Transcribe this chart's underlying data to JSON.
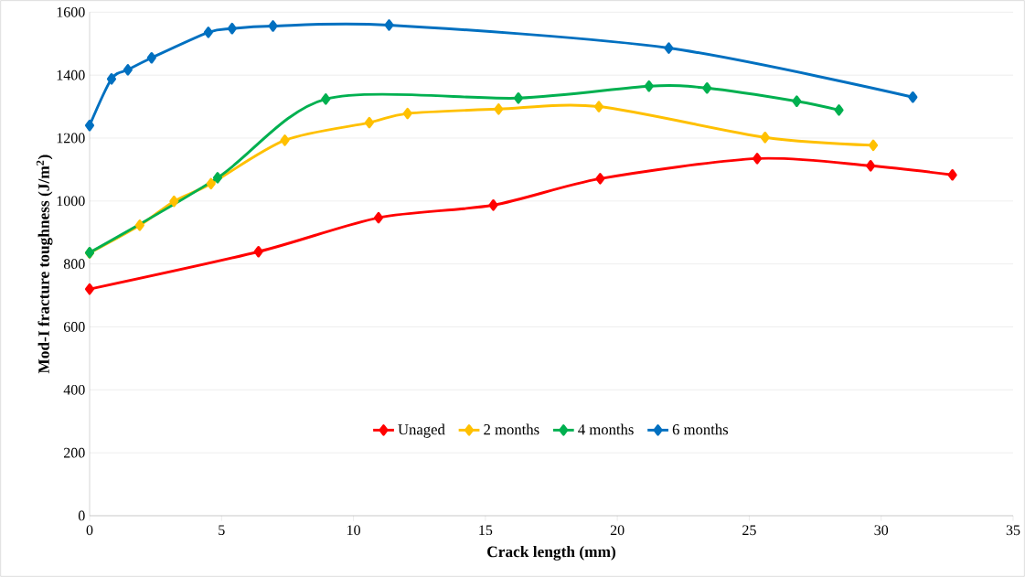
{
  "chart_data": {
    "type": "line",
    "xlabel": "Crack length (mm)",
    "ylabel": "Mod-I fracture toughness (J/m$^{2}$)",
    "xlim": [
      0,
      35
    ],
    "xticks": [
      0,
      5,
      10,
      15,
      20,
      25,
      30,
      35
    ],
    "ylim": [
      0,
      1600
    ],
    "yticks": [
      0,
      200,
      400,
      600,
      800,
      1000,
      1200,
      1400,
      1600
    ],
    "grid": "y",
    "legend": "bottom",
    "marker": "diamond",
    "line_style": "solid",
    "series": [
      {
        "name": "Unaged",
        "color": "#ff0000",
        "x": [
          0,
          6.4,
          10.95,
          15.3,
          19.35,
          25.3,
          29.6,
          32.7
        ],
        "values": [
          720,
          839,
          947,
          987,
          1071,
          1135,
          1112,
          1083
        ]
      },
      {
        "name": "2 months",
        "color": "#ffc000",
        "x": [
          0,
          1.9,
          3.2,
          4.6,
          7.4,
          10.6,
          12.05,
          15.5,
          19.3,
          25.6,
          29.7
        ],
        "values": [
          835,
          923,
          999,
          1055,
          1193,
          1249,
          1278,
          1292,
          1300,
          1202,
          1177
        ]
      },
      {
        "name": "4 months",
        "color": "#00b050",
        "x": [
          0,
          4.85,
          8.95,
          16.25,
          21.2,
          23.4,
          26.8,
          28.4
        ],
        "values": [
          836,
          1074,
          1324,
          1327,
          1365,
          1359,
          1317,
          1289
        ]
      },
      {
        "name": "6 months",
        "color": "#0070c0",
        "x": [
          0,
          0.83,
          1.45,
          2.35,
          4.5,
          5.4,
          6.95,
          11.35,
          21.95,
          31.2
        ],
        "values": [
          1240,
          1388,
          1417,
          1455,
          1536,
          1548,
          1556,
          1559,
          1486,
          1330
        ]
      }
    ]
  }
}
